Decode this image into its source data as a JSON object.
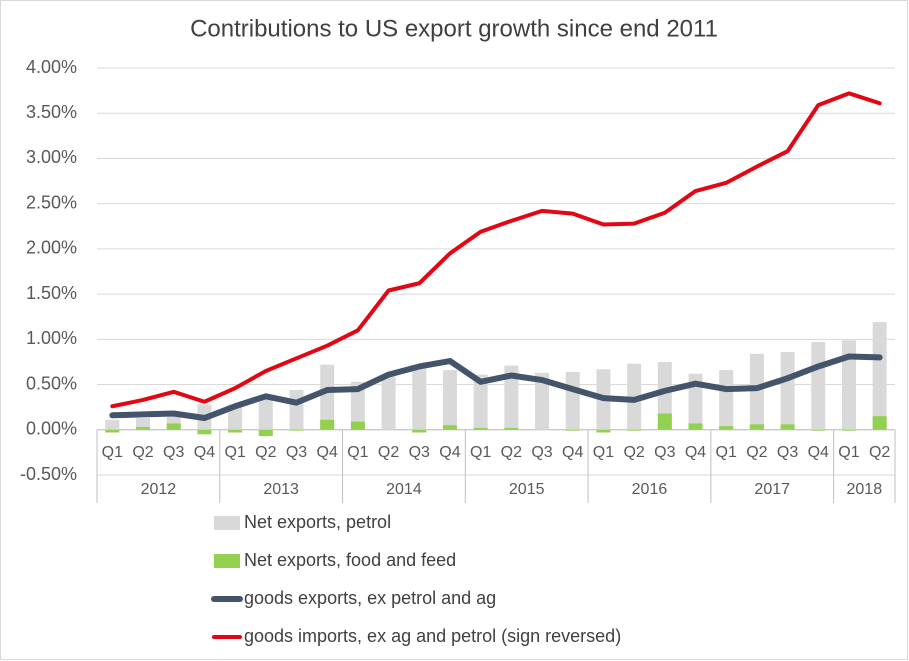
{
  "chart_data": {
    "type": "bar-line",
    "title": "Contributions to US export growth since end 2011",
    "groups": [
      {
        "label": "2012",
        "categories": [
          "Q1",
          "Q2",
          "Q3",
          "Q4"
        ]
      },
      {
        "label": "2013",
        "categories": [
          "Q1",
          "Q2",
          "Q3",
          "Q4"
        ]
      },
      {
        "label": "2014",
        "categories": [
          "Q1",
          "Q2",
          "Q3",
          "Q4"
        ]
      },
      {
        "label": "2015",
        "categories": [
          "Q1",
          "Q2",
          "Q3",
          "Q4"
        ]
      },
      {
        "label": "2016",
        "categories": [
          "Q1",
          "Q2",
          "Q3",
          "Q4"
        ]
      },
      {
        "label": "2017",
        "categories": [
          "Q1",
          "Q2",
          "Q3",
          "Q4"
        ]
      },
      {
        "label": "2018",
        "categories": [
          "Q1",
          "Q2"
        ]
      }
    ],
    "series": [
      {
        "name": "Net exports, petrol",
        "kind": "bar",
        "color": "#d9d9d9",
        "values": [
          0.11,
          0.13,
          0.16,
          0.28,
          0.28,
          0.35,
          0.44,
          0.72,
          0.53,
          0.59,
          0.69,
          0.66,
          0.61,
          0.71,
          0.63,
          0.64,
          0.67,
          0.73,
          0.75,
          0.62,
          0.66,
          0.84,
          0.86,
          0.97,
          0.99,
          1.19
        ]
      },
      {
        "name": "Net exports, food and feed",
        "kind": "bar",
        "color": "#92d050",
        "values": [
          -0.03,
          0.03,
          0.07,
          -0.05,
          -0.03,
          -0.07,
          -0.01,
          0.11,
          0.09,
          0.0,
          -0.03,
          0.05,
          0.02,
          0.02,
          0.0,
          -0.01,
          -0.03,
          -0.01,
          0.18,
          0.07,
          0.04,
          0.06,
          0.06,
          -0.01,
          -0.01,
          0.15
        ]
      },
      {
        "name": "goods exports, ex petrol and ag",
        "kind": "line",
        "color": "#44546a",
        "values": [
          0.16,
          0.17,
          0.18,
          0.13,
          0.26,
          0.37,
          0.3,
          0.44,
          0.45,
          0.61,
          0.7,
          0.76,
          0.53,
          0.6,
          0.55,
          0.45,
          0.35,
          0.33,
          0.43,
          0.51,
          0.45,
          0.46,
          0.57,
          0.7,
          0.81,
          0.8
        ]
      },
      {
        "name": "goods imports, ex ag and petrol (sign reversed)",
        "kind": "line",
        "color": "#e30613",
        "values": [
          0.26,
          0.33,
          0.42,
          0.31,
          0.46,
          0.65,
          0.79,
          0.93,
          1.1,
          1.54,
          1.62,
          1.95,
          2.19,
          2.31,
          2.42,
          2.39,
          2.27,
          2.28,
          2.4,
          2.64,
          2.73,
          2.91,
          3.08,
          3.59,
          3.72,
          3.61
        ]
      }
    ],
    "ylim": [
      -0.5,
      4
    ],
    "yticks": [
      {
        "value": -0.5,
        "label": "-0.50%"
      },
      {
        "value": 0,
        "label": "0.00%"
      },
      {
        "value": 0.5,
        "label": "0.50%"
      },
      {
        "value": 1,
        "label": "1.00%"
      },
      {
        "value": 1.5,
        "label": "1.50%"
      },
      {
        "value": 2,
        "label": "2.00%"
      },
      {
        "value": 2.5,
        "label": "2.50%"
      },
      {
        "value": 3,
        "label": "3.00%"
      },
      {
        "value": 3.5,
        "label": "3.50%"
      },
      {
        "value": 4,
        "label": "4.00%"
      }
    ],
    "grid": true
  }
}
